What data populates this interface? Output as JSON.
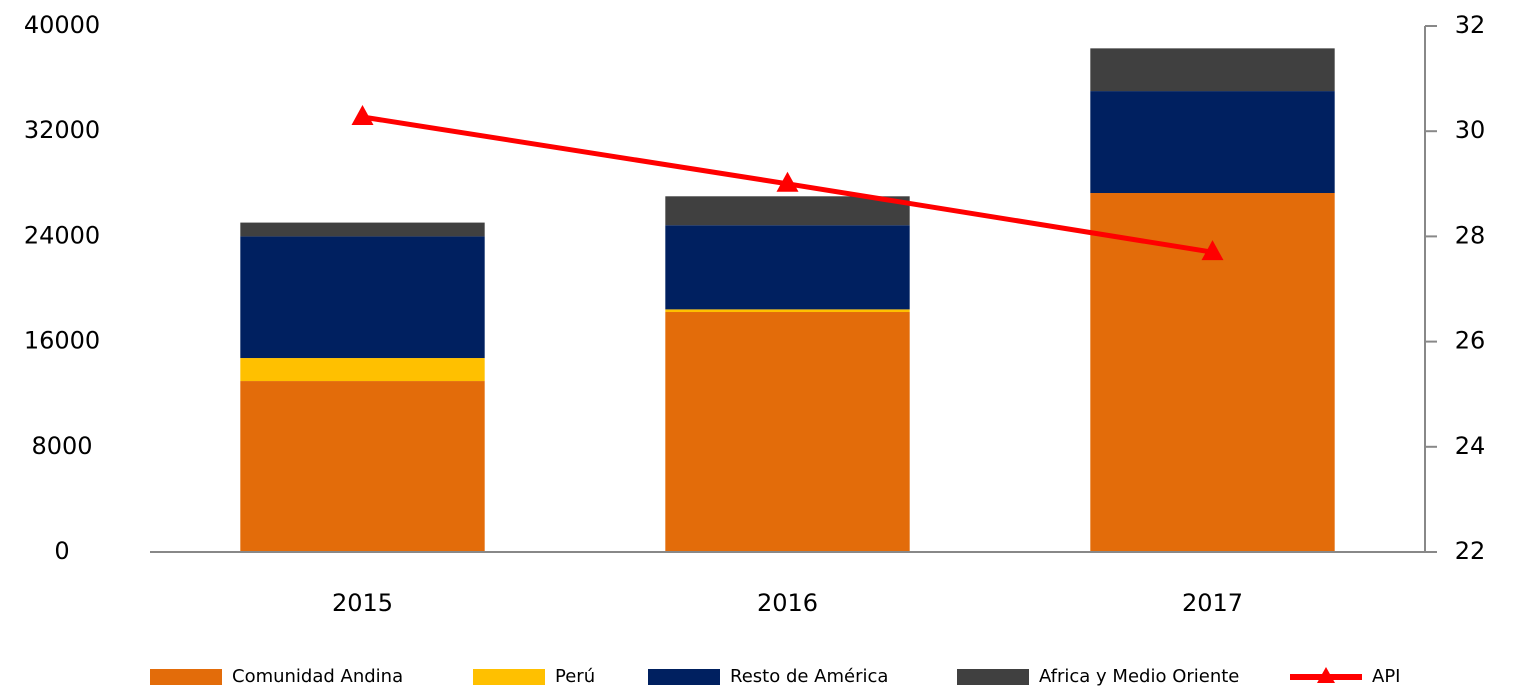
{
  "chart_data": {
    "type": "bar",
    "categories": [
      "2015",
      "2016",
      "2017"
    ],
    "series": [
      {
        "name": "Comunidad Andina",
        "color": "#e36c0a",
        "values": [
          13000,
          18250,
          27300
        ]
      },
      {
        "name": "Perú",
        "color": "#ffc000",
        "values": [
          1750,
          200,
          0
        ]
      },
      {
        "name": "Resto de América",
        "color": "#002060",
        "values": [
          9250,
          6400,
          7750
        ]
      },
      {
        "name": "Africa y Medio Oriente",
        "color": "#404040",
        "values": [
          1050,
          2200,
          3250
        ]
      },
      {
        "name": "API",
        "color": "#ff0000",
        "values": [
          30.27,
          29.0,
          27.7
        ],
        "axis": "y2",
        "type": "line"
      }
    ],
    "stacked": true,
    "ylim": [
      0,
      40000
    ],
    "yticks": [
      0,
      8000,
      16000,
      24000,
      32000,
      40000
    ],
    "y2lim": [
      22,
      32
    ],
    "y2ticks": [
      22,
      24,
      26,
      28,
      30,
      32
    ]
  }
}
